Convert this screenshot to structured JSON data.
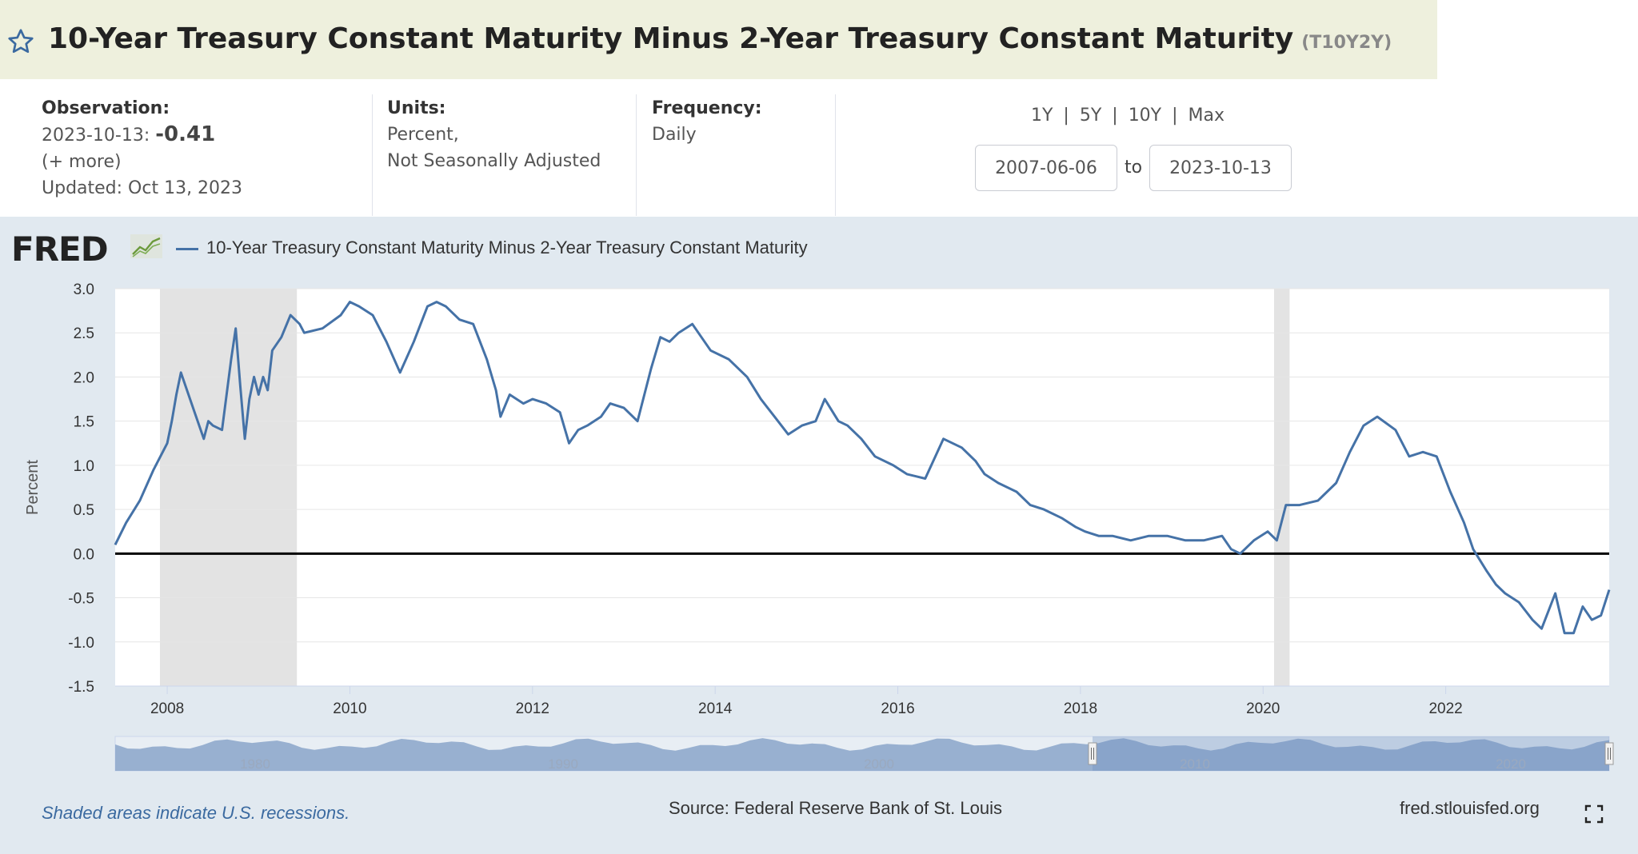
{
  "header": {
    "title": "10-Year Treasury Constant Maturity Minus 2-Year Treasury Constant Maturity",
    "series_id": "(T10Y2Y)",
    "star_icon": "star-icon"
  },
  "observation": {
    "label": "Observation:",
    "date": "2023-10-13:",
    "value": "-0.41",
    "more": "(+ more)",
    "updated": "Updated: Oct 13, 2023"
  },
  "units": {
    "label": "Units:",
    "line1": "Percent,",
    "line2": "Not Seasonally Adjusted"
  },
  "frequency": {
    "label": "Frequency:",
    "value": "Daily"
  },
  "range": {
    "links": [
      "1Y",
      "5Y",
      "10Y",
      "Max"
    ],
    "separator": "|",
    "start": "2007-06-06",
    "to": "to",
    "end": "2023-10-13"
  },
  "logo": {
    "text": "FRED",
    "mark": "fred-chart-logo-icon"
  },
  "footer": {
    "note": "Shaded areas indicate U.S. recessions.",
    "source": "Source: Federal Reserve Bank of St. Louis",
    "site": "fred.stlouisfed.org",
    "fullscreen_icon": "fullscreen-icon"
  },
  "colors": {
    "line": "#4572a7",
    "recession": "#e3e3e3",
    "title_bg": "#eef0dd",
    "panel_bg": "#e1e9f0",
    "navigator_fill": "#8fa9cc"
  },
  "chart_data": {
    "type": "line",
    "title": "",
    "xlabel": "",
    "ylabel": "Percent",
    "ylim": [
      -1.5,
      3.0
    ],
    "yticks": [
      "3.0",
      "2.5",
      "2.0",
      "1.5",
      "1.0",
      "0.5",
      "0.0",
      "-0.5",
      "-1.0",
      "-1.5"
    ],
    "xlim": [
      2007.43,
      2023.79
    ],
    "xticks": [
      "2008",
      "2010",
      "2012",
      "2014",
      "2016",
      "2018",
      "2020",
      "2022"
    ],
    "grid": true,
    "zero_line": true,
    "recessions": [
      [
        2007.92,
        2009.42
      ],
      [
        2020.12,
        2020.29
      ]
    ],
    "navigator_labels": [
      "1980",
      "1990",
      "2000",
      "2010",
      "2020"
    ],
    "series": [
      {
        "name": "10-Year Treasury Constant Maturity Minus 2-Year Treasury Constant Maturity",
        "x": [
          2007.43,
          2007.55,
          2007.7,
          2007.85,
          2008.0,
          2008.05,
          2008.1,
          2008.15,
          2008.2,
          2008.3,
          2008.4,
          2008.45,
          2008.5,
          2008.6,
          2008.7,
          2008.75,
          2008.8,
          2008.85,
          2008.9,
          2008.95,
          2009.0,
          2009.05,
          2009.1,
          2009.15,
          2009.25,
          2009.35,
          2009.45,
          2009.5,
          2009.7,
          2009.9,
          2010.0,
          2010.1,
          2010.25,
          2010.4,
          2010.55,
          2010.7,
          2010.85,
          2010.95,
          2011.05,
          2011.2,
          2011.35,
          2011.5,
          2011.6,
          2011.65,
          2011.75,
          2011.9,
          2012.0,
          2012.15,
          2012.3,
          2012.4,
          2012.5,
          2012.6,
          2012.75,
          2012.85,
          2013.0,
          2013.15,
          2013.3,
          2013.4,
          2013.5,
          2013.6,
          2013.75,
          2013.95,
          2014.15,
          2014.35,
          2014.5,
          2014.65,
          2014.8,
          2014.95,
          2015.1,
          2015.2,
          2015.35,
          2015.45,
          2015.6,
          2015.75,
          2015.95,
          2016.1,
          2016.3,
          2016.5,
          2016.7,
          2016.85,
          2016.95,
          2017.1,
          2017.3,
          2017.45,
          2017.6,
          2017.8,
          2017.95,
          2018.05,
          2018.2,
          2018.35,
          2018.55,
          2018.75,
          2018.95,
          2019.15,
          2019.35,
          2019.55,
          2019.65,
          2019.75,
          2019.9,
          2020.05,
          2020.15,
          2020.25,
          2020.4,
          2020.6,
          2020.8,
          2020.95,
          2021.1,
          2021.25,
          2021.45,
          2021.6,
          2021.75,
          2021.9,
          2022.05,
          2022.2,
          2022.3,
          2022.45,
          2022.55,
          2022.65,
          2022.8,
          2022.95,
          2023.05,
          2023.2,
          2023.3,
          2023.4,
          2023.5,
          2023.6,
          2023.7,
          2023.79
        ],
        "y": [
          0.1,
          0.35,
          0.6,
          0.95,
          1.25,
          1.5,
          1.8,
          2.05,
          1.9,
          1.6,
          1.3,
          1.5,
          1.45,
          1.4,
          2.2,
          2.55,
          1.9,
          1.3,
          1.75,
          2.0,
          1.8,
          2.0,
          1.85,
          2.3,
          2.45,
          2.7,
          2.6,
          2.5,
          2.55,
          2.7,
          2.85,
          2.8,
          2.7,
          2.4,
          2.05,
          2.4,
          2.8,
          2.85,
          2.8,
          2.65,
          2.6,
          2.2,
          1.85,
          1.55,
          1.8,
          1.7,
          1.75,
          1.7,
          1.6,
          1.25,
          1.4,
          1.45,
          1.55,
          1.7,
          1.65,
          1.5,
          2.1,
          2.45,
          2.4,
          2.5,
          2.6,
          2.3,
          2.2,
          2.0,
          1.75,
          1.55,
          1.35,
          1.45,
          1.5,
          1.75,
          1.5,
          1.45,
          1.3,
          1.1,
          1.0,
          0.9,
          0.85,
          1.3,
          1.2,
          1.05,
          0.9,
          0.8,
          0.7,
          0.55,
          0.5,
          0.4,
          0.3,
          0.25,
          0.2,
          0.2,
          0.15,
          0.2,
          0.2,
          0.15,
          0.15,
          0.2,
          0.05,
          0.0,
          0.15,
          0.25,
          0.15,
          0.55,
          0.55,
          0.6,
          0.8,
          1.15,
          1.45,
          1.55,
          1.4,
          1.1,
          1.15,
          1.1,
          0.7,
          0.35,
          0.05,
          -0.2,
          -0.35,
          -0.45,
          -0.55,
          -0.75,
          -0.85,
          -0.45,
          -0.9,
          -0.9,
          -0.6,
          -0.75,
          -0.7,
          -0.41
        ]
      }
    ]
  }
}
